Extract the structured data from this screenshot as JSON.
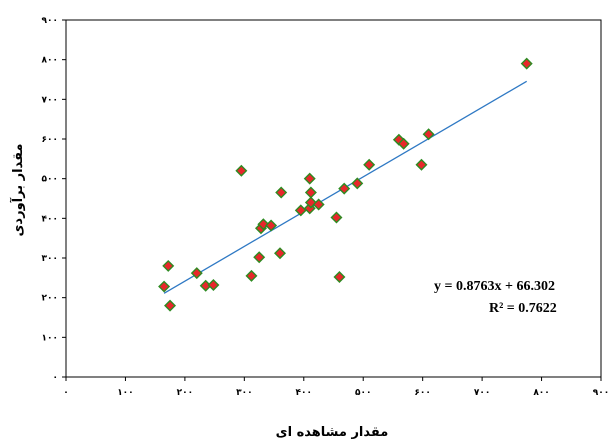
{
  "chart_data": {
    "type": "scatter",
    "xlabel": "مقدار مشاهده ای",
    "ylabel": "مقدار برآوردی",
    "xlim": [
      0,
      900
    ],
    "ylim": [
      0,
      900
    ],
    "xticks": [
      "۰",
      "۱۰۰",
      "۲۰۰",
      "۳۰۰",
      "۴۰۰",
      "۵۰۰",
      "۶۰۰",
      "۷۰۰",
      "۸۰۰",
      "۹۰۰"
    ],
    "yticks": [
      "۰",
      "۱۰۰",
      "۲۰۰",
      "۳۰۰",
      "۴۰۰",
      "۵۰۰",
      "۶۰۰",
      "۷۰۰",
      "۸۰۰",
      "۹۰۰"
    ],
    "grid": false,
    "point_color": "#e8272b",
    "point_edge_color": "#2e8b22",
    "trendline_color": "#2f79c4",
    "points": [
      {
        "x": 165,
        "y": 228
      },
      {
        "x": 172,
        "y": 280
      },
      {
        "x": 175,
        "y": 180
      },
      {
        "x": 220,
        "y": 262
      },
      {
        "x": 235,
        "y": 230
      },
      {
        "x": 248,
        "y": 232
      },
      {
        "x": 295,
        "y": 520
      },
      {
        "x": 312,
        "y": 255
      },
      {
        "x": 325,
        "y": 302
      },
      {
        "x": 328,
        "y": 375
      },
      {
        "x": 332,
        "y": 385
      },
      {
        "x": 345,
        "y": 382
      },
      {
        "x": 360,
        "y": 312
      },
      {
        "x": 362,
        "y": 465
      },
      {
        "x": 395,
        "y": 420
      },
      {
        "x": 410,
        "y": 425
      },
      {
        "x": 410,
        "y": 500
      },
      {
        "x": 412,
        "y": 440
      },
      {
        "x": 412,
        "y": 465
      },
      {
        "x": 425,
        "y": 435
      },
      {
        "x": 455,
        "y": 402
      },
      {
        "x": 460,
        "y": 252
      },
      {
        "x": 468,
        "y": 475
      },
      {
        "x": 490,
        "y": 488
      },
      {
        "x": 510,
        "y": 535
      },
      {
        "x": 560,
        "y": 598
      },
      {
        "x": 568,
        "y": 588
      },
      {
        "x": 598,
        "y": 535
      },
      {
        "x": 610,
        "y": 612
      },
      {
        "x": 775,
        "y": 790
      }
    ],
    "trendline": {
      "slope": 0.8763,
      "intercept": 66.302,
      "x_range": [
        165,
        775
      ],
      "equation": "y = 0.8763x + 66.302",
      "r2": "R² = 0.7622"
    }
  }
}
